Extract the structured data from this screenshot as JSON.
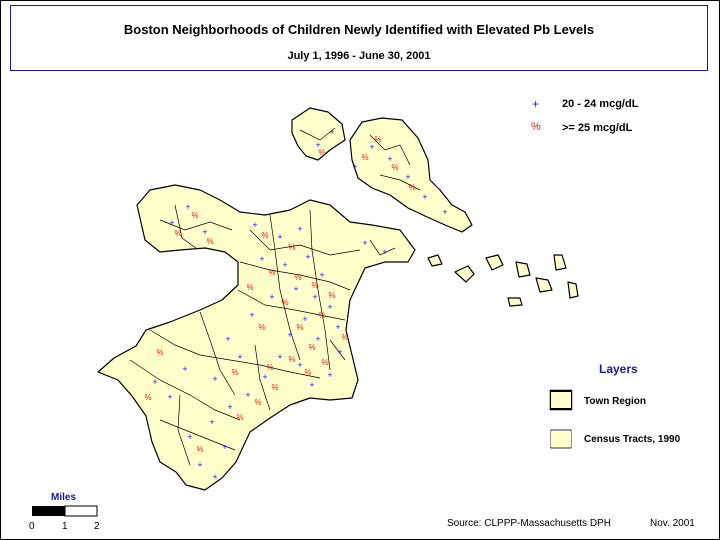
{
  "title": "Boston Neighborhoods of Children Newly Identified with Elevated Pb Levels",
  "subtitle": "July 1, 1996 - June 30, 2001",
  "legend": {
    "items": [
      {
        "symbol": "+",
        "label": "20 - 24 mcg/dL",
        "color": "#1a1ae0"
      },
      {
        "symbol": "%",
        "label": ">= 25 mcg/dL",
        "color": "#e01a1a"
      }
    ]
  },
  "layers": {
    "title": "Layers",
    "items": [
      {
        "label": "Town Region"
      },
      {
        "label": "Census Tracts, 1990"
      }
    ]
  },
  "scale_bar": {
    "title": "Miles",
    "ticks": [
      "0",
      "1",
      "2"
    ]
  },
  "source": "Source: CLPPP-Massachusetts DPH",
  "date": "Nov. 2001",
  "colors": {
    "land": "#ffffcc",
    "water": "#ffffff",
    "border": "#000000",
    "accent": "#1a1aa0"
  }
}
